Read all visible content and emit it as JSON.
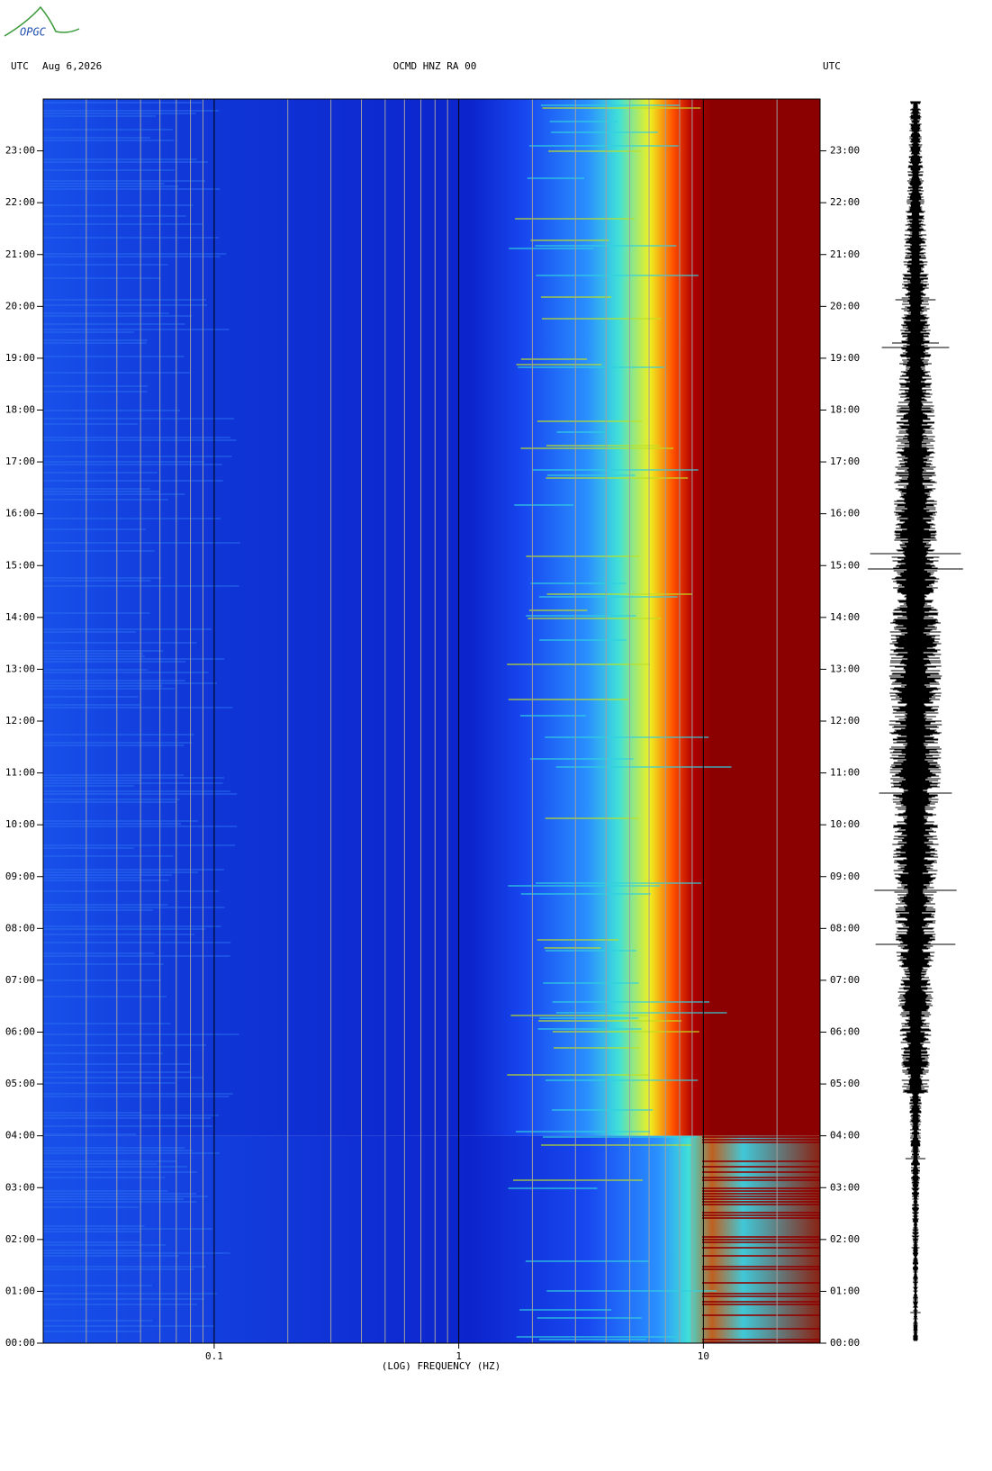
{
  "header": {
    "logo": "OPGC",
    "left_label": "UTC",
    "date": "Aug 6,2026",
    "station": "OCMD HNZ RA 00",
    "right_label": "UTC"
  },
  "chart_data": {
    "type": "spectrogram",
    "xlabel": "(LOG) FREQUENCY (HZ)",
    "xscale": "log",
    "xlim": [
      0.02,
      30
    ],
    "xticks": [
      0.1,
      1,
      10
    ],
    "xminor": [
      0.03,
      0.04,
      0.05,
      0.06,
      0.07,
      0.08,
      0.09,
      0.2,
      0.3,
      0.4,
      0.5,
      0.6,
      0.7,
      0.8,
      0.9,
      2,
      3,
      4,
      5,
      6,
      7,
      8,
      9,
      20
    ],
    "ylim": [
      0,
      24
    ],
    "yticks": [
      {
        "value": 0,
        "label": "00:00"
      },
      {
        "value": 1,
        "label": "01:00"
      },
      {
        "value": 2,
        "label": "02:00"
      },
      {
        "value": 3,
        "label": "03:00"
      },
      {
        "value": 4,
        "label": "04:00"
      },
      {
        "value": 5,
        "label": "05:00"
      },
      {
        "value": 6,
        "label": "06:00"
      },
      {
        "value": 7,
        "label": "07:00"
      },
      {
        "value": 8,
        "label": "08:00"
      },
      {
        "value": 9,
        "label": "09:00"
      },
      {
        "value": 10,
        "label": "10:00"
      },
      {
        "value": 11,
        "label": "11:00"
      },
      {
        "value": 12,
        "label": "12:00"
      },
      {
        "value": 13,
        "label": "13:00"
      },
      {
        "value": 14,
        "label": "14:00"
      },
      {
        "value": 15,
        "label": "15:00"
      },
      {
        "value": 16,
        "label": "16:00"
      },
      {
        "value": 17,
        "label": "17:00"
      },
      {
        "value": 18,
        "label": "18:00"
      },
      {
        "value": 19,
        "label": "19:00"
      },
      {
        "value": 20,
        "label": "20:00"
      },
      {
        "value": 21,
        "label": "21:00"
      },
      {
        "value": 22,
        "label": "22:00"
      },
      {
        "value": 23,
        "label": "23:00"
      }
    ]
  }
}
